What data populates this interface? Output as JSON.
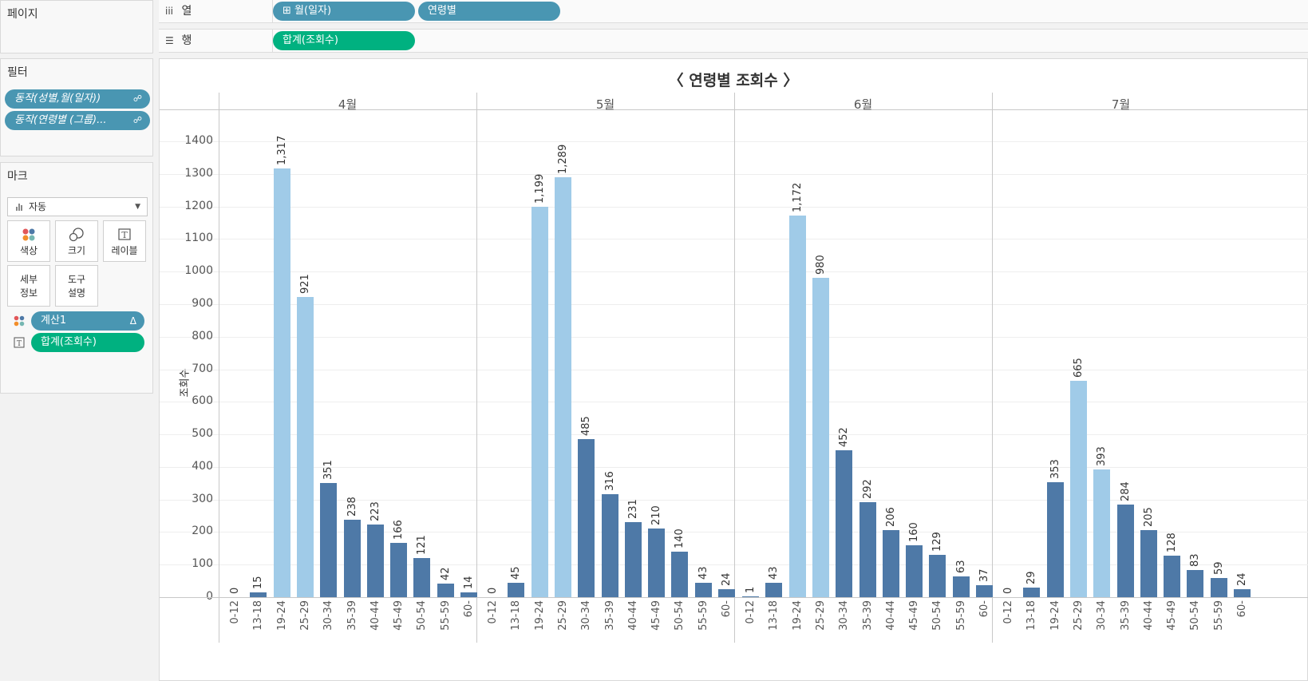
{
  "sidebar": {
    "pages_title": "페이지",
    "filters_title": "필터",
    "filters": [
      {
        "label": "동작(성별,월(일자))",
        "icon": "link-icon"
      },
      {
        "label": "동작(연령별 (그룹)...",
        "icon": "link-icon"
      }
    ],
    "marks_title": "마크",
    "marks_type": "자동",
    "mark_buttons": [
      {
        "label": "색상",
        "icon": "color-dots-icon"
      },
      {
        "label": "크기",
        "icon": "size-circles-icon"
      },
      {
        "label": "레이블",
        "icon": "label-t-icon"
      },
      {
        "label": "세부\n정보",
        "icon": ""
      },
      {
        "label": "도구\n설명",
        "icon": ""
      }
    ],
    "mark_fields": [
      {
        "label": "계산1",
        "icon": "color-dots-icon",
        "suffix": "Δ",
        "color": "#4996b2"
      },
      {
        "label": "합계(조회수)",
        "icon": "label-t-icon",
        "suffix": "",
        "color": "#00b180"
      }
    ]
  },
  "shelves": {
    "columns_label": "열",
    "columns_icon": "columns-icon",
    "columns_pills": [
      "월(일자)",
      "연령별"
    ],
    "columns_pill_prefix": "⊞",
    "rows_label": "행",
    "rows_icon": "rows-icon",
    "rows_pills": [
      "합계(조회수)"
    ]
  },
  "chart_data": {
    "type": "bar",
    "title": "〈 연령별 조회수 〉",
    "ylabel": "조회수",
    "ylim": [
      0,
      1400
    ],
    "yticks": [
      0,
      100,
      200,
      300,
      400,
      500,
      600,
      700,
      800,
      900,
      1000,
      1100,
      1200,
      1300,
      1400
    ],
    "grid": true,
    "categories": [
      "0-12",
      "13-18",
      "19-24",
      "25-29",
      "30-34",
      "35-39",
      "40-44",
      "45-49",
      "50-54",
      "55-59",
      "60-"
    ],
    "panels": [
      {
        "name": "4월",
        "values": [
          0,
          15,
          1317,
          921,
          351,
          238,
          223,
          166,
          121,
          42,
          14
        ],
        "labels": [
          "0",
          "15",
          "1,317",
          "921",
          "351",
          "238",
          "223",
          "166",
          "121",
          "42",
          "14"
        ],
        "highlight": [
          2,
          3
        ]
      },
      {
        "name": "5월",
        "values": [
          0,
          45,
          1199,
          1289,
          485,
          316,
          231,
          210,
          140,
          43,
          24
        ],
        "labels": [
          "0",
          "45",
          "1,199",
          "1,289",
          "485",
          "316",
          "231",
          "210",
          "140",
          "43",
          "24"
        ],
        "highlight": [
          2,
          3
        ]
      },
      {
        "name": "6월",
        "values": [
          1,
          43,
          1172,
          980,
          452,
          292,
          206,
          160,
          129,
          63,
          37
        ],
        "labels": [
          "1",
          "43",
          "1,172",
          "980",
          "452",
          "292",
          "206",
          "160",
          "129",
          "63",
          "37"
        ],
        "highlight": [
          2,
          3
        ]
      },
      {
        "name": "7월",
        "values": [
          0,
          29,
          353,
          665,
          393,
          284,
          205,
          128,
          83,
          59,
          24
        ],
        "labels": [
          "0",
          "29",
          "353",
          "665",
          "393",
          "284",
          "205",
          "128",
          "83",
          "59",
          "24"
        ],
        "highlight": [
          3,
          4
        ]
      }
    ],
    "colors": {
      "highlight": "#a0cbe8",
      "base": "#4e79a7"
    }
  }
}
